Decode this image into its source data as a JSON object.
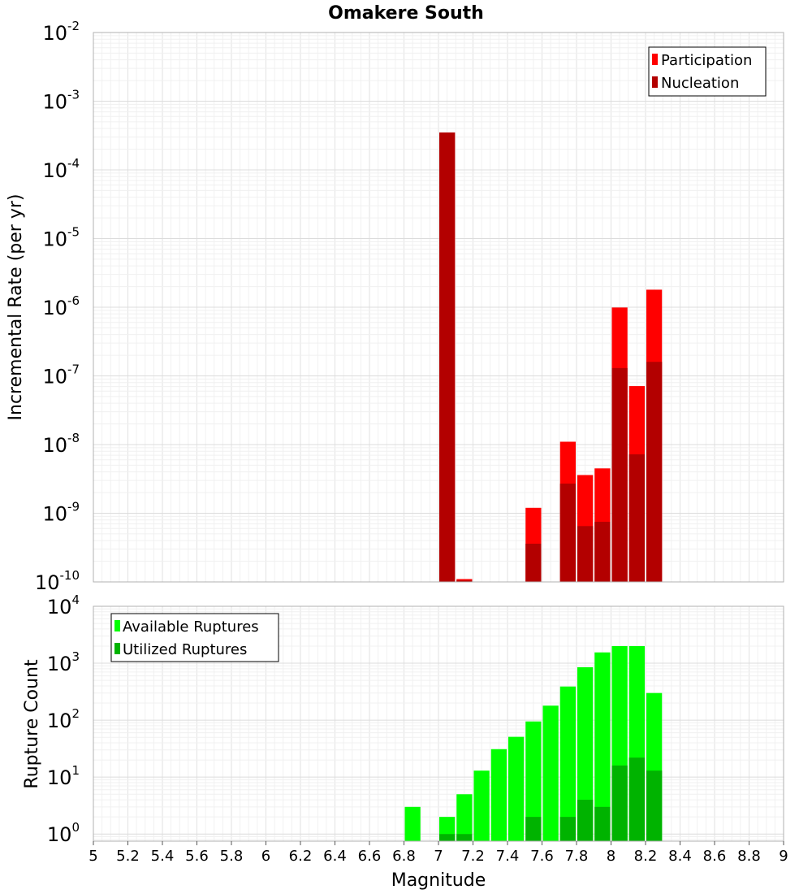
{
  "title": "Omakere South",
  "xlabel": "Magnitude",
  "xticks": [
    "5",
    "5.2",
    "5.4",
    "5.6",
    "5.8",
    "6",
    "6.2",
    "6.4",
    "6.6",
    "6.8",
    "7",
    "7.2",
    "7.4",
    "7.6",
    "7.8",
    "8",
    "8.2",
    "8.4",
    "8.6",
    "8.8",
    "9"
  ],
  "chart_data": [
    {
      "type": "bar",
      "title": "Omakere South",
      "ylabel": "Incremental Rate (per yr)",
      "xlabel": "Magnitude",
      "xlim": [
        5,
        9
      ],
      "ylim": [
        1e-10,
        0.01
      ],
      "yscale": "log",
      "yticks": [
        {
          "base": "10",
          "exp": "-10"
        },
        {
          "base": "10",
          "exp": "-9"
        },
        {
          "base": "10",
          "exp": "-8"
        },
        {
          "base": "10",
          "exp": "-7"
        },
        {
          "base": "10",
          "exp": "-6"
        },
        {
          "base": "10",
          "exp": "-5"
        },
        {
          "base": "10",
          "exp": "-4"
        },
        {
          "base": "10",
          "exp": "-3"
        },
        {
          "base": "10",
          "exp": "-2"
        }
      ],
      "grid": true,
      "legend_position": "top-right",
      "series": [
        {
          "name": "Participation",
          "color": "#ff0000",
          "x": [
            7.05,
            7.15,
            7.55,
            7.75,
            7.85,
            7.95,
            8.05,
            8.15,
            8.25
          ],
          "values": [
            0.00035,
            1.1e-10,
            1.2e-09,
            1.1e-08,
            3.6e-09,
            4.5e-09,
            9.9e-07,
            7.1e-08,
            1.8e-06
          ]
        },
        {
          "name": "Nucleation",
          "color": "#b30000",
          "x": [
            7.05,
            7.15,
            7.55,
            7.75,
            7.85,
            7.95,
            8.05,
            8.15,
            8.25
          ],
          "values": [
            0.00035,
            1.05e-10,
            3.6e-10,
            2.7e-09,
            6.5e-10,
            7.5e-10,
            1.3e-07,
            7.2e-09,
            1.6e-07
          ]
        }
      ]
    },
    {
      "type": "bar",
      "ylabel": "Rupture Count",
      "xlabel": "Magnitude",
      "xlim": [
        5,
        9
      ],
      "ylim": [
        0.75,
        10000
      ],
      "yscale": "log",
      "yticks": [
        {
          "base": "10",
          "exp": "0"
        },
        {
          "base": "10",
          "exp": "1"
        },
        {
          "base": "10",
          "exp": "2"
        },
        {
          "base": "10",
          "exp": "3"
        },
        {
          "base": "10",
          "exp": "4"
        }
      ],
      "grid": true,
      "legend_position": "top-left",
      "series": [
        {
          "name": "Available Ruptures",
          "color": "#00ff00",
          "x": [
            6.85,
            7.05,
            7.15,
            7.25,
            7.35,
            7.45,
            7.55,
            7.65,
            7.75,
            7.85,
            7.95,
            8.05,
            8.15,
            8.25
          ],
          "values": [
            3,
            2,
            5,
            13,
            31,
            51,
            95,
            180,
            390,
            850,
            1550,
            2000,
            2000,
            300
          ]
        },
        {
          "name": "Utilized Ruptures",
          "color": "#00b300",
          "x": [
            7.05,
            7.15,
            7.55,
            7.75,
            7.85,
            7.95,
            8.05,
            8.15,
            8.25
          ],
          "values": [
            1,
            1,
            2,
            2,
            4,
            3,
            16,
            22,
            13
          ]
        }
      ]
    }
  ]
}
